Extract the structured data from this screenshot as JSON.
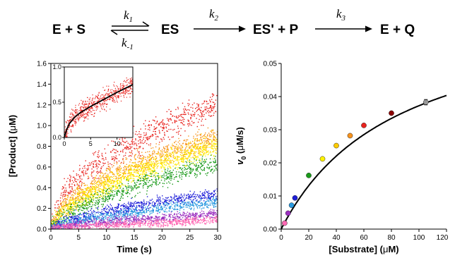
{
  "scheme": {
    "s1": "E + S",
    "s2": "ES",
    "s3": "ES' + P",
    "s4": "E + Q",
    "k1": "k",
    "k1_sub": "1",
    "km1": "k",
    "km1_sub": "-1",
    "k2": "k",
    "k2_sub": "2",
    "k3": "k",
    "k3_sub": "3"
  },
  "chart_data": [
    {
      "type": "scatter",
      "panel": "left",
      "xlabel": "Time (s)",
      "ylabel_pre": "[Product] (",
      "ylabel_mu": "μ",
      "ylabel_post": "M)",
      "xlim": [
        0,
        30
      ],
      "ylim": [
        0,
        1.6
      ],
      "xticks": [
        "0",
        "5",
        "10",
        "15",
        "20",
        "25",
        "30"
      ],
      "yticks": [
        "0.0",
        "0.2",
        "0.4",
        "0.6",
        "0.8",
        "1.0",
        "1.2",
        "1.4",
        "1.6"
      ],
      "series": [
        {
          "color": "#e8231e",
          "curve": [
            [
              0,
              0
            ],
            [
              2,
              0.32
            ],
            [
              5,
              0.48
            ],
            [
              10,
              0.68
            ],
            [
              15,
              0.84
            ],
            [
              20,
              0.98
            ],
            [
              25,
              1.1
            ],
            [
              30,
              1.2
            ]
          ]
        },
        {
          "color": "#f7931e",
          "curve": [
            [
              0,
              0
            ],
            [
              2,
              0.2
            ],
            [
              5,
              0.34
            ],
            [
              10,
              0.5
            ],
            [
              15,
              0.63
            ],
            [
              20,
              0.73
            ],
            [
              25,
              0.82
            ],
            [
              30,
              0.9
            ]
          ]
        },
        {
          "color": "#ffcc00",
          "curve": [
            [
              0,
              0
            ],
            [
              2,
              0.17
            ],
            [
              5,
              0.3
            ],
            [
              10,
              0.45
            ],
            [
              15,
              0.57
            ],
            [
              20,
              0.67
            ],
            [
              25,
              0.76
            ],
            [
              30,
              0.85
            ]
          ]
        },
        {
          "color": "#fff200",
          "curve": [
            [
              0,
              0
            ],
            [
              2,
              0.15
            ],
            [
              5,
              0.27
            ],
            [
              10,
              0.41
            ],
            [
              15,
              0.52
            ],
            [
              20,
              0.62
            ],
            [
              25,
              0.71
            ],
            [
              30,
              0.79
            ]
          ]
        },
        {
          "color": "#1a9a1a",
          "curve": [
            [
              0,
              0
            ],
            [
              2,
              0.11
            ],
            [
              5,
              0.2
            ],
            [
              10,
              0.31
            ],
            [
              15,
              0.41
            ],
            [
              20,
              0.5
            ],
            [
              25,
              0.57
            ],
            [
              30,
              0.63
            ]
          ]
        },
        {
          "color": "#1f1fd8",
          "curve": [
            [
              0,
              0
            ],
            [
              2,
              0.07
            ],
            [
              5,
              0.11
            ],
            [
              10,
              0.17
            ],
            [
              15,
              0.22
            ],
            [
              20,
              0.27
            ],
            [
              25,
              0.31
            ],
            [
              30,
              0.34
            ]
          ]
        },
        {
          "color": "#2a9ae0",
          "curve": [
            [
              0,
              0
            ],
            [
              2,
              0.05
            ],
            [
              5,
              0.08
            ],
            [
              10,
              0.12
            ],
            [
              15,
              0.16
            ],
            [
              20,
              0.2
            ],
            [
              25,
              0.23
            ],
            [
              30,
              0.26
            ]
          ]
        },
        {
          "color": "#9b30c0",
          "curve": [
            [
              0,
              0
            ],
            [
              2,
              0.025
            ],
            [
              5,
              0.045
            ],
            [
              10,
              0.07
            ],
            [
              15,
              0.09
            ],
            [
              20,
              0.11
            ],
            [
              25,
              0.13
            ],
            [
              30,
              0.15
            ]
          ]
        },
        {
          "color": "#ff69b4",
          "curve": [
            [
              0,
              0
            ],
            [
              2,
              0.015
            ],
            [
              5,
              0.025
            ],
            [
              10,
              0.04
            ],
            [
              15,
              0.05
            ],
            [
              20,
              0.06
            ],
            [
              25,
              0.075
            ],
            [
              30,
              0.09
            ]
          ]
        }
      ]
    },
    {
      "type": "scatter",
      "panel": "left-inset",
      "xlim": [
        0,
        13
      ],
      "ylim": [
        0,
        1.0
      ],
      "xticks": [
        "0",
        "5",
        "10"
      ],
      "yticks": [
        "0.0",
        "0.5",
        "1.0"
      ],
      "points_color": "#e8231e",
      "fit_color": "#000000",
      "fit": [
        [
          0,
          0
        ],
        [
          0.5,
          0.12
        ],
        [
          1,
          0.2
        ],
        [
          2,
          0.29
        ],
        [
          3,
          0.35
        ],
        [
          5,
          0.44
        ],
        [
          7,
          0.52
        ],
        [
          10,
          0.64
        ],
        [
          13,
          0.75
        ]
      ]
    },
    {
      "type": "scatter",
      "panel": "right",
      "xlabel_pre": "[Substrate] (",
      "xlabel_mu": "μ",
      "xlabel_post": "M)",
      "ylabel_v": "v",
      "ylabel_sub": "0",
      "ylabel_pre": " (",
      "ylabel_mu": "μ",
      "ylabel_post": "M/s)",
      "xlim": [
        0,
        120
      ],
      "ylim": [
        0,
        0.05
      ],
      "xticks": [
        "0",
        "20",
        "40",
        "60",
        "80",
        "100",
        "120"
      ],
      "yticks": [
        "0.00",
        "0.01",
        "0.02",
        "0.03",
        "0.04",
        "0.05"
      ],
      "fit": {
        "vmax": 0.0689,
        "km": 85
      },
      "points": [
        {
          "x": 2.5,
          "y": 0.0018,
          "err": 0.0003,
          "color": "#ff69b4"
        },
        {
          "x": 5,
          "y": 0.0048,
          "err": 0.0004,
          "color": "#9b30c0"
        },
        {
          "x": 7.5,
          "y": 0.0072,
          "err": 0.0004,
          "color": "#2a9ae0"
        },
        {
          "x": 10,
          "y": 0.0094,
          "err": 0.0004,
          "color": "#1f1fd8"
        },
        {
          "x": 20,
          "y": 0.0162,
          "err": 0.0004,
          "color": "#1a9a1a"
        },
        {
          "x": 30,
          "y": 0.0212,
          "err": 0.0004,
          "color": "#fff200"
        },
        {
          "x": 40,
          "y": 0.0252,
          "err": 0.0004,
          "color": "#ffcc00"
        },
        {
          "x": 50,
          "y": 0.0282,
          "err": 0.0004,
          "color": "#f7931e"
        },
        {
          "x": 60,
          "y": 0.0313,
          "err": 0.0004,
          "color": "#e8231e"
        },
        {
          "x": 80,
          "y": 0.035,
          "err": 0.0004,
          "color": "#8b0000"
        },
        {
          "x": 105,
          "y": 0.0383,
          "err": 0.0008,
          "color": "#999999"
        }
      ]
    }
  ]
}
